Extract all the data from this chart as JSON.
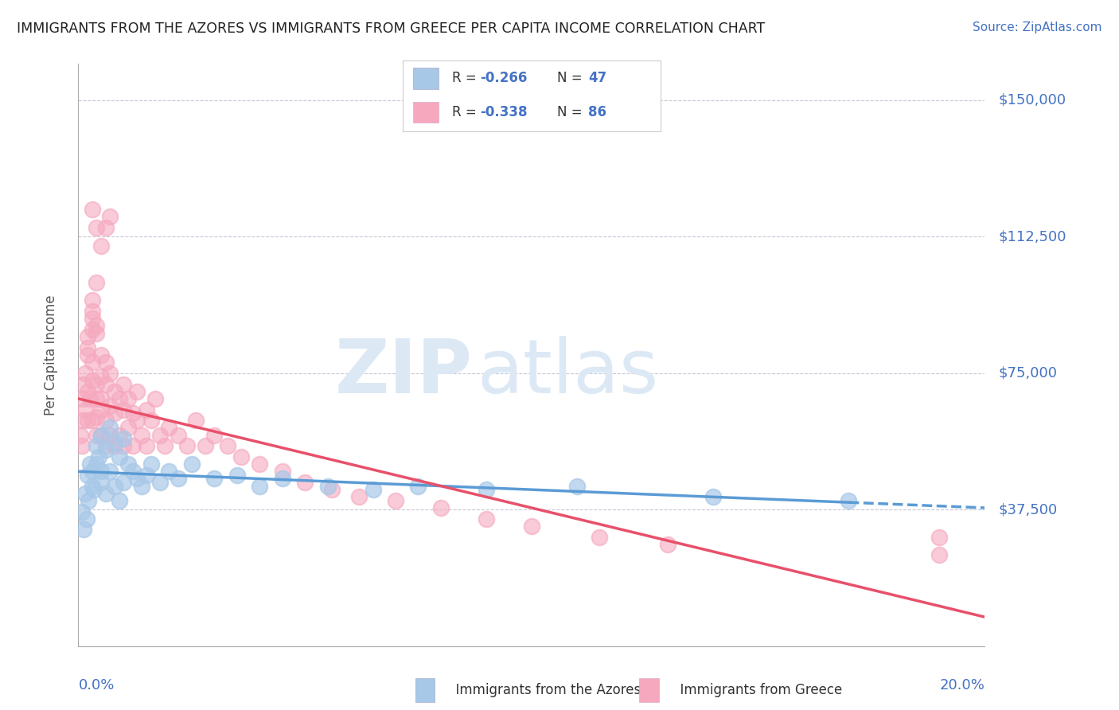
{
  "title": "IMMIGRANTS FROM THE AZORES VS IMMIGRANTS FROM GREECE PER CAPITA INCOME CORRELATION CHART",
  "source": "Source: ZipAtlas.com",
  "ylabel": "Per Capita Income",
  "xlim": [
    0.0,
    0.2
  ],
  "ylim": [
    0,
    160000
  ],
  "yticks": [
    37500,
    75000,
    112500,
    150000
  ],
  "ytick_labels": [
    "$37,500",
    "$75,000",
    "$112,500",
    "$150,000"
  ],
  "azores_color": "#a8c8e8",
  "greece_color": "#f5a8be",
  "azores_line_color": "#5b9bd5",
  "greece_line_color": "#e8506a",
  "background_color": "#ffffff",
  "grid_color": "#c8c8d8",
  "title_color": "#222222",
  "axis_label_color": "#555555",
  "tick_label_color": "#4472c4",
  "watermark_zip": "ZIP",
  "watermark_atlas": "atlas",
  "watermark_color": "#dce9f5",
  "legend_bottom_azores": "Immigrants from the Azores",
  "legend_bottom_greece": "Immigrants from Greece",
  "azores_scatter_x": [
    0.0008,
    0.0012,
    0.0015,
    0.0018,
    0.002,
    0.0022,
    0.0025,
    0.003,
    0.003,
    0.0035,
    0.004,
    0.004,
    0.0045,
    0.005,
    0.005,
    0.005,
    0.006,
    0.006,
    0.007,
    0.007,
    0.008,
    0.008,
    0.009,
    0.009,
    0.01,
    0.01,
    0.011,
    0.012,
    0.013,
    0.014,
    0.015,
    0.016,
    0.018,
    0.02,
    0.022,
    0.025,
    0.03,
    0.035,
    0.04,
    0.045,
    0.055,
    0.065,
    0.075,
    0.09,
    0.11,
    0.14,
    0.17
  ],
  "azores_scatter_y": [
    37000,
    32000,
    42000,
    35000,
    47000,
    40000,
    50000,
    44000,
    48000,
    43000,
    55000,
    50000,
    52000,
    48000,
    45000,
    58000,
    54000,
    42000,
    60000,
    48000,
    56000,
    44000,
    52000,
    40000,
    57000,
    45000,
    50000,
    48000,
    46000,
    44000,
    47000,
    50000,
    45000,
    48000,
    46000,
    50000,
    46000,
    47000,
    44000,
    46000,
    44000,
    43000,
    44000,
    43000,
    44000,
    41000,
    40000
  ],
  "greece_scatter_x": [
    0.0005,
    0.0008,
    0.001,
    0.001,
    0.0012,
    0.0015,
    0.0015,
    0.002,
    0.002,
    0.002,
    0.0025,
    0.003,
    0.003,
    0.003,
    0.004,
    0.004,
    0.004,
    0.004,
    0.005,
    0.005,
    0.005,
    0.005,
    0.006,
    0.006,
    0.006,
    0.007,
    0.007,
    0.007,
    0.008,
    0.008,
    0.008,
    0.009,
    0.009,
    0.01,
    0.01,
    0.01,
    0.011,
    0.011,
    0.012,
    0.012,
    0.013,
    0.013,
    0.014,
    0.015,
    0.015,
    0.016,
    0.017,
    0.018,
    0.019,
    0.02,
    0.022,
    0.024,
    0.026,
    0.028,
    0.03,
    0.033,
    0.036,
    0.04,
    0.045,
    0.05,
    0.056,
    0.062,
    0.07,
    0.08,
    0.09,
    0.1,
    0.115,
    0.13,
    0.003,
    0.004,
    0.005,
    0.006,
    0.007,
    0.002,
    0.003,
    0.004,
    0.002,
    0.003,
    0.003,
    0.004,
    0.005,
    0.006,
    0.003,
    0.004,
    0.19,
    0.19
  ],
  "greece_scatter_y": [
    58000,
    55000,
    62000,
    68000,
    72000,
    65000,
    75000,
    70000,
    62000,
    80000,
    68000,
    73000,
    62000,
    78000,
    68000,
    58000,
    72000,
    63000,
    65000,
    74000,
    58000,
    68000,
    62000,
    72000,
    55000,
    66000,
    75000,
    58000,
    64000,
    70000,
    55000,
    68000,
    58000,
    65000,
    72000,
    55000,
    60000,
    68000,
    64000,
    55000,
    62000,
    70000,
    58000,
    65000,
    55000,
    62000,
    68000,
    58000,
    55000,
    60000,
    58000,
    55000,
    62000,
    55000,
    58000,
    55000,
    52000,
    50000,
    48000,
    45000,
    43000,
    41000,
    40000,
    38000,
    35000,
    33000,
    30000,
    28000,
    95000,
    100000,
    110000,
    115000,
    118000,
    85000,
    90000,
    88000,
    82000,
    87000,
    92000,
    86000,
    80000,
    78000,
    120000,
    115000,
    30000,
    25000
  ],
  "azores_line_x": [
    0.0,
    0.2
  ],
  "azores_line_y": [
    48000,
    38000
  ],
  "greece_line_x": [
    0.0,
    0.2
  ],
  "greece_line_y": [
    68000,
    8000
  ]
}
